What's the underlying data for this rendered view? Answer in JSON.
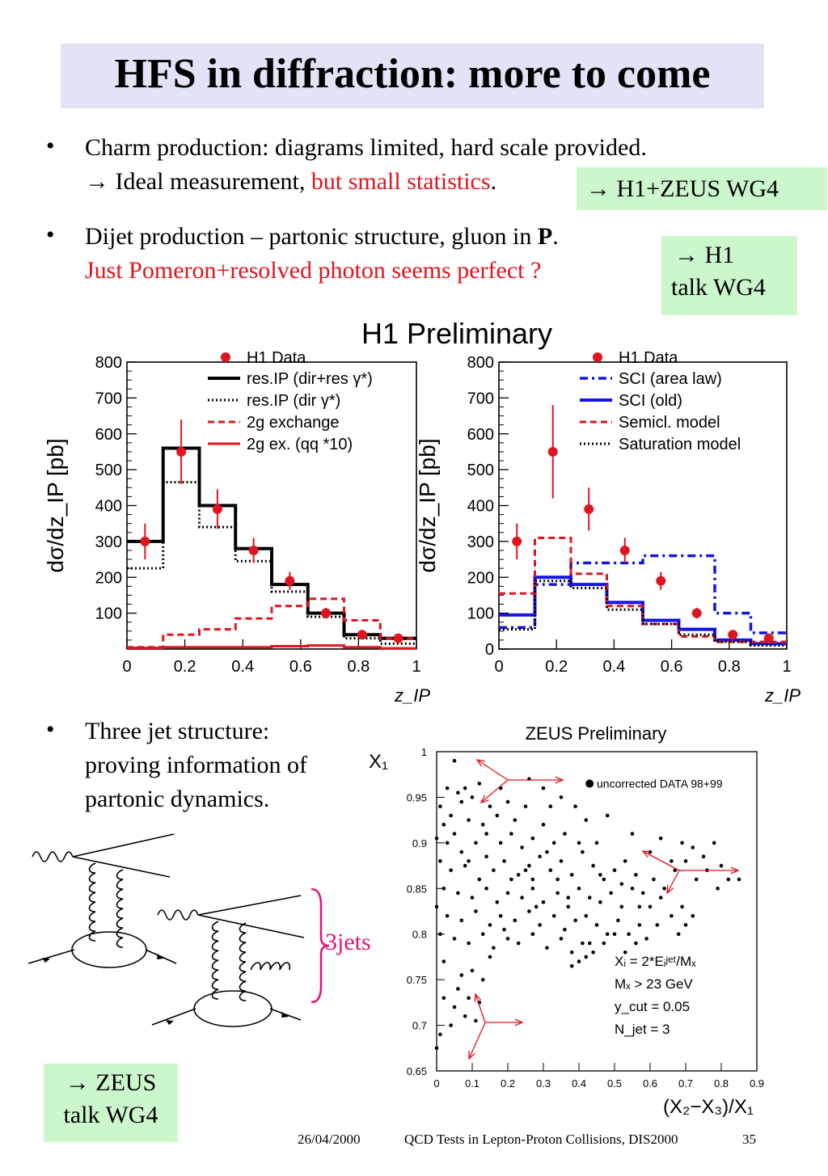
{
  "title": "HFS in diffraction: more to come",
  "bullets": [
    {
      "line1": "Charm production: diagrams limited, hard scale provided.",
      "line2_prefix": "→ Ideal measurement, ",
      "line2_red": "but small statistics",
      "line2_suffix": "."
    },
    {
      "line1_prefix": "Dijet production – partonic structure, gluon in ",
      "line1_bold": "P",
      "line1_suffix": ".",
      "line2_red": "Just Pomeron+resolved photon seems perfect ?"
    },
    {
      "lines": [
        "Three jet structure:",
        "proving information of",
        "partonic dynamics."
      ]
    }
  ],
  "boxes": {
    "charm": "→ H1+ZEUS WG4",
    "dijet_line1": "→ H1",
    "dijet_line2": "talk WG4",
    "zeus_line1": "→ ZEUS",
    "zeus_line2": "talk WG4"
  },
  "h1_title": "H1 Preliminary",
  "jets_label": "3jets",
  "zeus_title": "ZEUS Preliminary",
  "footer": {
    "date": "26/04/2000",
    "conference": "QCD Tests in Lepton-Proton Collisions, DIS2000",
    "page": "35"
  },
  "colors": {
    "red": "#e0141e",
    "blue": "#1414e0",
    "magenta": "#e0147a",
    "title_bg": "#e3e3f8",
    "box_bg": "#ccf7cc"
  },
  "chart_data": [
    {
      "type": "line",
      "title": "H1 Preliminary",
      "xlabel": "z_IP",
      "ylabel": "dσ/dz_IP [pb]",
      "xlim": [
        0,
        1
      ],
      "ylim": [
        0,
        800
      ],
      "xticks": [
        "0",
        "0.2",
        "0.4",
        "0.6",
        "0.8",
        "1"
      ],
      "yticks": [
        "100",
        "200",
        "300",
        "400",
        "500",
        "600",
        "700",
        "800"
      ],
      "bin_edges": [
        0,
        0.125,
        0.25,
        0.375,
        0.5,
        0.625,
        0.75,
        0.875,
        1.0
      ],
      "legend_position": "top-right",
      "data_points": {
        "name": "H1 Data",
        "x": [
          0.0625,
          0.1875,
          0.3125,
          0.4375,
          0.5625,
          0.6875,
          0.8125,
          0.9375
        ],
        "y": [
          300,
          550,
          390,
          275,
          190,
          100,
          40,
          30
        ],
        "err": [
          50,
          90,
          55,
          35,
          25,
          15,
          10,
          8
        ]
      },
      "series": [
        {
          "name": "res.IP (dir+res γ*)",
          "style": "solid-black",
          "values": [
            300,
            560,
            400,
            280,
            180,
            100,
            40,
            30
          ]
        },
        {
          "name": "res.IP (dir γ*)",
          "style": "dotted-black",
          "values": [
            225,
            465,
            340,
            245,
            160,
            90,
            30,
            15
          ]
        },
        {
          "name": "2g exchange",
          "style": "dashed-red",
          "values": [
            5,
            40,
            55,
            85,
            120,
            140,
            80,
            30
          ]
        },
        {
          "name": "2g ex. (qq *10)",
          "style": "solid-red",
          "values": [
            3,
            5,
            5,
            5,
            8,
            10,
            5,
            2
          ]
        }
      ]
    },
    {
      "type": "line",
      "title": "H1 Preliminary",
      "xlabel": "z_IP",
      "ylabel": "dσ/dz_IP [pb]",
      "xlim": [
        0,
        1
      ],
      "ylim": [
        0,
        800
      ],
      "xticks": [
        "0",
        "0.2",
        "0.4",
        "0.6",
        "0.8",
        "1"
      ],
      "yticks": [
        "0",
        "100",
        "200",
        "300",
        "400",
        "500",
        "600",
        "700",
        "800"
      ],
      "bin_edges": [
        0,
        0.125,
        0.25,
        0.375,
        0.5,
        0.625,
        0.75,
        0.875,
        1.0
      ],
      "legend_position": "top-right",
      "data_points": {
        "name": "H1 Data",
        "x": [
          0.0625,
          0.1875,
          0.3125,
          0.4375,
          0.5625,
          0.6875,
          0.8125,
          0.9375
        ],
        "y": [
          300,
          550,
          390,
          275,
          190,
          100,
          40,
          30
        ],
        "err": [
          50,
          130,
          60,
          35,
          25,
          15,
          10,
          8
        ]
      },
      "series": [
        {
          "name": "SCI (area law)",
          "style": "dashdot-blue",
          "values": [
            60,
            180,
            240,
            240,
            260,
            260,
            100,
            45
          ]
        },
        {
          "name": "SCI (old)",
          "style": "solid-blue",
          "values": [
            95,
            200,
            180,
            130,
            80,
            55,
            25,
            15
          ]
        },
        {
          "name": "Semicl. model",
          "style": "dashed-red",
          "values": [
            155,
            310,
            210,
            120,
            70,
            35,
            20,
            20
          ]
        },
        {
          "name": "Saturation model",
          "style": "dotted-black",
          "values": [
            55,
            190,
            170,
            110,
            70,
            40,
            20,
            10
          ]
        }
      ]
    },
    {
      "type": "scatter",
      "title": "ZEUS Preliminary",
      "xlabel": "(X₂−X₃)/X₁",
      "ylabel": "X₁",
      "xlim": [
        0,
        0.9
      ],
      "ylim": [
        0.65,
        1.0
      ],
      "xticks": [
        "0",
        "0.1",
        "0.2",
        "0.3",
        "0.4",
        "0.5",
        "0.6",
        "0.7",
        "0.8",
        "0.9"
      ],
      "yticks": [
        "0.65",
        "0.7",
        "0.75",
        "0.8",
        "0.85",
        "0.9",
        "0.95",
        "1"
      ],
      "legend": "uncorrected DATA 98+99",
      "legend_position": "top-right",
      "annotations": [
        "Xᵢ = 2*Eᵢʲᵉᵗ/Mₓ",
        "Mₓ > 23 GeV",
        "y_cut = 0.05",
        "N_jet = 3"
      ],
      "points": [
        [
          0.05,
          0.99
        ],
        [
          0.03,
          0.96
        ],
        [
          0.06,
          0.955
        ],
        [
          0.08,
          0.96
        ],
        [
          0.01,
          0.94
        ],
        [
          0.04,
          0.93
        ],
        [
          0.07,
          0.945
        ],
        [
          0.1,
          0.95
        ],
        [
          0.12,
          0.965
        ],
        [
          0.15,
          0.94
        ],
        [
          0.02,
          0.92
        ],
        [
          0.05,
          0.91
        ],
        [
          0.09,
          0.925
        ],
        [
          0.13,
          0.92
        ],
        [
          0.17,
          0.93
        ],
        [
          0.2,
          0.945
        ],
        [
          0.22,
          0.925
        ],
        [
          0.25,
          0.94
        ],
        [
          0.03,
          0.9
        ],
        [
          0.07,
          0.89
        ],
        [
          0.11,
          0.9
        ],
        [
          0.14,
          0.885
        ],
        [
          0.18,
          0.9
        ],
        [
          0.21,
          0.91
        ],
        [
          0.24,
          0.895
        ],
        [
          0.27,
          0.905
        ],
        [
          0.3,
          0.92
        ],
        [
          0.33,
          0.9
        ],
        [
          0.36,
          0.91
        ],
        [
          0.01,
          0.88
        ],
        [
          0.04,
          0.87
        ],
        [
          0.08,
          0.875
        ],
        [
          0.12,
          0.86
        ],
        [
          0.16,
          0.87
        ],
        [
          0.19,
          0.88
        ],
        [
          0.23,
          0.865
        ],
        [
          0.26,
          0.875
        ],
        [
          0.29,
          0.885
        ],
        [
          0.32,
          0.87
        ],
        [
          0.35,
          0.88
        ],
        [
          0.38,
          0.865
        ],
        [
          0.41,
          0.89
        ],
        [
          0.44,
          0.875
        ],
        [
          0.47,
          0.86
        ],
        [
          0.5,
          0.87
        ],
        [
          0.53,
          0.88
        ],
        [
          0.56,
          0.865
        ],
        [
          0.02,
          0.85
        ],
        [
          0.06,
          0.845
        ],
        [
          0.1,
          0.84
        ],
        [
          0.14,
          0.85
        ],
        [
          0.17,
          0.835
        ],
        [
          0.2,
          0.845
        ],
        [
          0.24,
          0.84
        ],
        [
          0.27,
          0.85
        ],
        [
          0.3,
          0.835
        ],
        [
          0.34,
          0.845
        ],
        [
          0.37,
          0.83
        ],
        [
          0.4,
          0.85
        ],
        [
          0.43,
          0.84
        ],
        [
          0.46,
          0.835
        ],
        [
          0.49,
          0.845
        ],
        [
          0.52,
          0.83
        ],
        [
          0.55,
          0.85
        ],
        [
          0.58,
          0.845
        ],
        [
          0.61,
          0.86
        ],
        [
          0.64,
          0.85
        ],
        [
          0.67,
          0.87
        ],
        [
          0.7,
          0.88
        ],
        [
          0.73,
          0.86
        ],
        [
          0.76,
          0.87
        ],
        [
          0.79,
          0.85
        ],
        [
          0.82,
          0.86
        ],
        [
          0.03,
          0.82
        ],
        [
          0.07,
          0.815
        ],
        [
          0.11,
          0.825
        ],
        [
          0.15,
          0.81
        ],
        [
          0.18,
          0.82
        ],
        [
          0.22,
          0.815
        ],
        [
          0.26,
          0.825
        ],
        [
          0.29,
          0.81
        ],
        [
          0.33,
          0.82
        ],
        [
          0.36,
          0.805
        ],
        [
          0.39,
          0.815
        ],
        [
          0.42,
          0.82
        ],
        [
          0.45,
          0.81
        ],
        [
          0.48,
          0.8
        ],
        [
          0.51,
          0.815
        ],
        [
          0.54,
          0.8
        ],
        [
          0.57,
          0.81
        ],
        [
          0.01,
          0.8
        ],
        [
          0.05,
          0.795
        ],
        [
          0.09,
          0.79
        ],
        [
          0.13,
          0.8
        ],
        [
          0.16,
          0.785
        ],
        [
          0.2,
          0.795
        ],
        [
          0.23,
          0.79
        ],
        [
          0.27,
          0.8
        ],
        [
          0.31,
          0.785
        ],
        [
          0.35,
          0.795
        ],
        [
          0.38,
          0.78
        ],
        [
          0.41,
          0.79
        ],
        [
          0.44,
          0.78
        ],
        [
          0.47,
          0.79
        ],
        [
          0.5,
          0.8
        ],
        [
          0.53,
          0.78
        ],
        [
          0.56,
          0.79
        ],
        [
          0.59,
          0.795
        ],
        [
          0.4,
          0.77
        ],
        [
          0.38,
          0.765
        ],
        [
          0.42,
          0.775
        ],
        [
          0.1,
          0.76
        ],
        [
          0.07,
          0.755
        ],
        [
          0.13,
          0.75
        ],
        [
          0.02,
          0.73
        ],
        [
          0.09,
          0.73
        ],
        [
          0.05,
          0.72
        ],
        [
          0.12,
          0.725
        ],
        [
          0.08,
          0.71
        ],
        [
          0.04,
          0.7
        ],
        [
          0.11,
          0.705
        ],
        [
          0.01,
          0.69
        ],
        [
          0.0,
          0.675
        ],
        [
          0.27,
          0.86
        ],
        [
          0.31,
          0.89
        ],
        [
          0.45,
          0.9
        ],
        [
          0.48,
          0.93
        ],
        [
          0.39,
          0.94
        ],
        [
          0.42,
          0.925
        ],
        [
          0.6,
          0.89
        ],
        [
          0.63,
          0.905
        ],
        [
          0.66,
          0.88
        ],
        [
          0.69,
          0.9
        ],
        [
          0.72,
          0.895
        ],
        [
          0.75,
          0.885
        ],
        [
          0.78,
          0.9
        ],
        [
          0.8,
          0.875
        ],
        [
          0.85,
          0.86
        ],
        [
          0.6,
          0.83
        ],
        [
          0.63,
          0.84
        ],
        [
          0.66,
          0.82
        ],
        [
          0.69,
          0.83
        ],
        [
          0.72,
          0.82
        ],
        [
          0.68,
          0.8
        ],
        [
          0.7,
          0.81
        ],
        [
          0.26,
          0.97
        ],
        [
          0.3,
          0.96
        ],
        [
          0.35,
          0.95
        ],
        [
          0.0,
          0.905
        ],
        [
          0.0,
          0.83
        ],
        [
          0.02,
          0.77
        ],
        [
          0.06,
          0.74
        ],
        [
          0.15,
          0.775
        ],
        [
          0.19,
          0.805
        ],
        [
          0.25,
          0.87
        ],
        [
          0.34,
          0.86
        ],
        [
          0.46,
          0.865
        ],
        [
          0.52,
          0.855
        ],
        [
          0.57,
          0.83
        ],
        [
          0.62,
          0.81
        ],
        [
          0.43,
          0.79
        ],
        [
          0.37,
          0.84
        ],
        [
          0.28,
          0.83
        ],
        [
          0.21,
          0.86
        ],
        [
          0.14,
          0.91
        ],
        [
          0.09,
          0.88
        ],
        [
          0.18,
          0.96
        ],
        [
          0.32,
          0.94
        ],
        [
          0.4,
          0.9
        ],
        [
          0.55,
          0.91
        ]
      ]
    }
  ]
}
